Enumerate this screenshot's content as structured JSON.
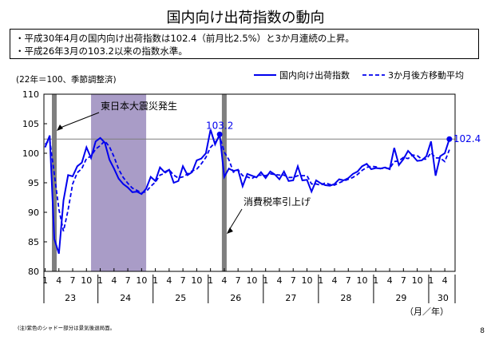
{
  "page": {
    "title": "国内向け出荷指数の動向",
    "bullets": [
      "・平成30年4月の国内向け出荷指数は102.4（前月比2.5%）と3か月連続の上昇。",
      "・平成26年3月の103.2以来の指数水準。"
    ],
    "note": "(注)紫色のシャドー部分は景気後退局面。",
    "page_number": "8"
  },
  "chart_data": {
    "type": "line",
    "ylabel": "(22年＝100、季節調整済)",
    "xlabel": "（月／年）",
    "ylim": [
      80,
      110
    ],
    "yticks": [
      80,
      85,
      90,
      95,
      100,
      105,
      110
    ],
    "grid": false,
    "legend_position": "top-right",
    "month_ticks": [
      "1",
      "4",
      "7",
      "10",
      "1",
      "4",
      "7",
      "10",
      "1",
      "4",
      "7",
      "10",
      "1",
      "4",
      "7",
      "10",
      "1",
      "4",
      "7",
      "10",
      "1",
      "4",
      "7",
      "10",
      "1",
      "4",
      "7",
      "10",
      "1",
      "4"
    ],
    "year_labels": [
      "23",
      "24",
      "25",
      "26",
      "27",
      "28",
      "29",
      "30"
    ],
    "colors": {
      "line": "#0000ee",
      "shade": "#a99cc7",
      "event_bar": "#7f7f7f",
      "reference": "#7f7f7f"
    },
    "reference_line": 102.4,
    "shaded_periods": [
      {
        "start_month": 10,
        "end_month": 22
      }
    ],
    "events": [
      {
        "month": 2,
        "label": "東日本大震災発生"
      },
      {
        "month": 39,
        "label": "消費税率引上げ"
      }
    ],
    "annotations": [
      {
        "month": 38,
        "value": 103.2,
        "label": "103.2"
      },
      {
        "month": 88,
        "value": 102.4,
        "label": "102.4"
      }
    ],
    "series": [
      {
        "name": "国内向け出荷指数",
        "style": "solid",
        "values": [
          101.0,
          103.0,
          85.5,
          83.0,
          92.0,
          96.3,
          96.1,
          97.8,
          98.4,
          101.0,
          99.2,
          102.0,
          102.6,
          101.8,
          98.9,
          97.4,
          95.7,
          94.8,
          94.2,
          93.4,
          93.5,
          93.1,
          94.0,
          96.0,
          95.3,
          97.6,
          96.8,
          97.2,
          95.0,
          95.3,
          97.8,
          96.3,
          96.8,
          98.8,
          99.1,
          100.0,
          104.0,
          101.5,
          103.2,
          96.0,
          97.4,
          97.0,
          97.2,
          94.4,
          96.5,
          96.2,
          95.9,
          96.8,
          95.8,
          96.9,
          96.4,
          95.6,
          96.9,
          95.3,
          95.4,
          97.8,
          95.4,
          95.5,
          93.5,
          95.4,
          94.9,
          94.6,
          94.5,
          94.8,
          95.6,
          95.4,
          95.8,
          96.5,
          96.9,
          97.8,
          98.2,
          97.3,
          97.5,
          97.4,
          97.6,
          97.3,
          100.9,
          98.0,
          99.0,
          100.4,
          99.6,
          98.7,
          98.8,
          99.5,
          102.0,
          96.2,
          99.5,
          100.0,
          102.4
        ]
      },
      {
        "name": "3か月後方移動平均",
        "style": "dashed",
        "values": [
          101.5,
          102.3,
          96.5,
          90.5,
          86.8,
          90.4,
          94.8,
          96.7,
          97.4,
          99.1,
          99.5,
          100.7,
          101.3,
          102.1,
          101.1,
          99.4,
          97.3,
          95.9,
          94.9,
          94.1,
          93.7,
          93.3,
          93.5,
          94.4,
          95.1,
          96.3,
          96.6,
          97.2,
          96.3,
          95.8,
          96.0,
          96.5,
          97.0,
          97.3,
          98.2,
          99.3,
          101.0,
          101.8,
          102.9,
          100.2,
          98.9,
          96.8,
          97.2,
          96.2,
          96.0,
          95.7,
          96.2,
          96.3,
          96.2,
          96.5,
          96.4,
          96.3,
          96.3,
          95.9,
          95.9,
          96.2,
          96.2,
          96.2,
          94.8,
          94.8,
          94.6,
          95.0,
          94.7,
          94.6,
          95.0,
          95.3,
          95.6,
          95.9,
          96.4,
          97.1,
          97.6,
          97.8,
          97.7,
          97.4,
          97.5,
          97.4,
          98.6,
          98.7,
          99.3,
          99.1,
          99.7,
          99.6,
          99.0,
          99.0,
          100.1,
          99.2,
          99.2,
          98.6,
          100.6
        ]
      }
    ]
  }
}
